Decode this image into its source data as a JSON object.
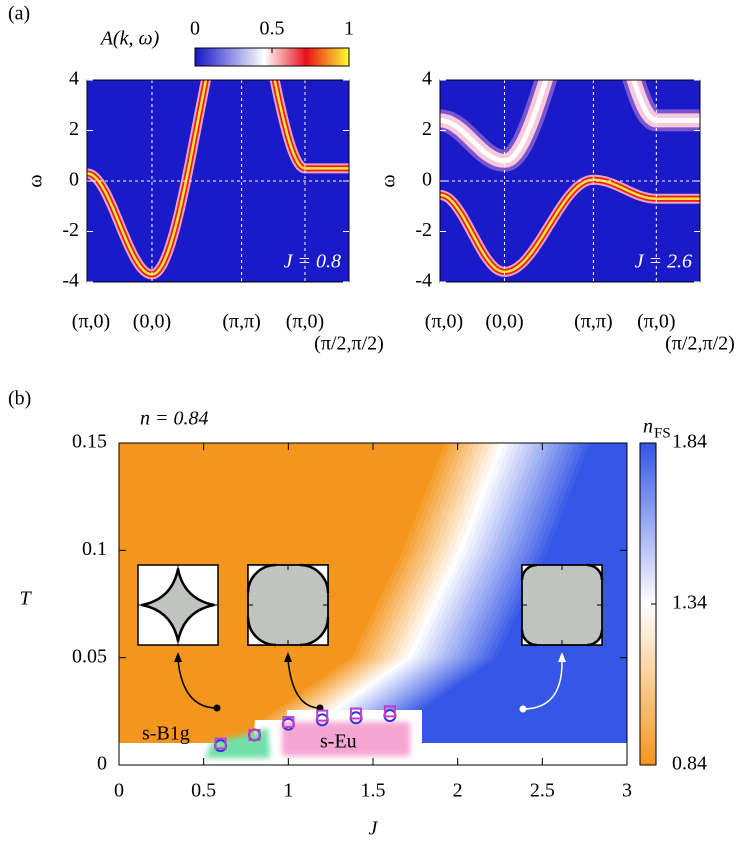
{
  "panel_labels": [
    "(a)",
    "(b)"
  ],
  "chart_data": [
    {
      "type": "spectral",
      "annotation": "J = 0.8",
      "ylabel": "ω",
      "ylim": [
        -4,
        4
      ],
      "yticks": [
        4,
        2,
        0,
        -2,
        -4
      ],
      "categories": [
        "(π,0)",
        "(0,0)",
        "(π,π)",
        "(π,0)",
        "(π/2,π/2)"
      ],
      "colorbar": {
        "label": "A(k, ω)",
        "lim": [
          0,
          1
        ],
        "ticks": [
          0,
          0.5,
          1
        ]
      }
    },
    {
      "type": "spectral",
      "annotation": "J = 2.6",
      "ylabel": "ω",
      "ylim": [
        -4,
        4
      ],
      "yticks": [
        4,
        2,
        0,
        -2,
        -4
      ],
      "categories": [
        "(π,0)",
        "(0,0)",
        "(π,π)",
        "(π,0)",
        "(π/2,π/2)"
      ]
    },
    {
      "type": "scatter",
      "annotation": "n = 0.84",
      "regions": [
        "s-B1g",
        "s-Eu"
      ],
      "xlabel": "J",
      "ylabel": "T",
      "xlim": [
        0,
        3
      ],
      "ylim": [
        0,
        0.15
      ],
      "xticks": [
        0,
        0.5,
        1,
        1.5,
        2,
        2.5,
        3
      ],
      "yticks": [
        0,
        0.05,
        0.1,
        0.15
      ],
      "series": [
        {
          "marker": "circle",
          "color": "#3535e0",
          "x": [
            0.6,
            0.8,
            1.0,
            1.2,
            1.4,
            1.6
          ],
          "values": [
            0.009,
            0.014,
            0.019,
            0.021,
            0.022,
            0.023
          ]
        },
        {
          "marker": "square",
          "color": "#c040c8",
          "x": [
            0.6,
            0.8,
            1.0,
            1.2,
            1.4,
            1.6
          ],
          "values": [
            0.01,
            0.014,
            0.02,
            0.023,
            0.024,
            0.025
          ]
        }
      ],
      "colorbar": {
        "label": "n",
        "label_sub": "FS",
        "lim": [
          0.84,
          1.84
        ],
        "ticks": [
          0.84,
          1.34,
          1.84
        ]
      }
    }
  ]
}
